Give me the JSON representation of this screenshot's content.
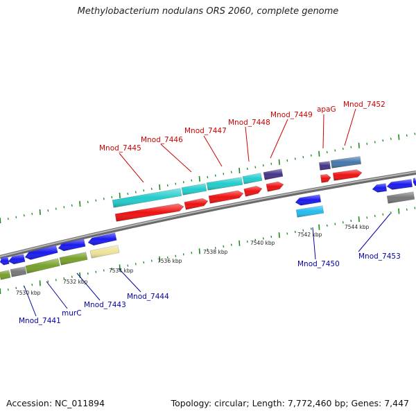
{
  "title": "Methylobacterium nodulans ORS 2060, complete genome",
  "footer": {
    "accession": "Accession: NC_011894",
    "summary": "Topology: circular; Length: 7,772,460 bp; Genes: 7,447"
  },
  "colors": {
    "forward_label": "#cc0000",
    "reverse_label": "#0000aa",
    "backbone": "#888888",
    "tick": "#1a8a1a",
    "red_cds": "#ee1111",
    "cyan_cds": "#22cccc",
    "blue_cds": "#1a1aee",
    "light_blue_cds": "#22bbee",
    "purple_cds": "#443388",
    "steel_cds": "#4477aa",
    "olive_cds": "#77a02a",
    "gray_cds": "#777777",
    "khaki_cds": "#eee39a"
  },
  "scale_labels": [
    "7530 kbp",
    "7532 kbp",
    "7534 kbp",
    "7536 kbp",
    "7538 kbp",
    "7540 kbp",
    "7542 kbp",
    "7544 kbp"
  ],
  "forward_gene_labels": [
    "Mnod_7445",
    "Mnod_7446",
    "Mnod_7447",
    "Mnod_7448",
    "Mnod_7449",
    "apaG",
    "Mnod_7452"
  ],
  "reverse_gene_labels": [
    "Mnod_7441",
    "murC",
    "Mnod_7443",
    "Mnod_7444",
    "Mnod_7450",
    "Mnod_7453"
  ]
}
